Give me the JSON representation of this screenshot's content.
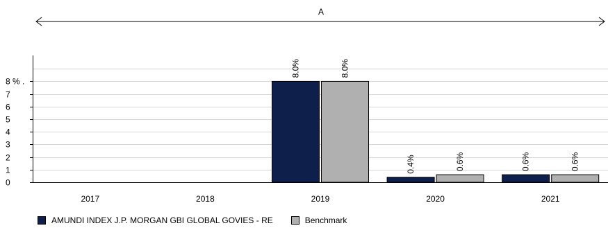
{
  "chart_data": {
    "type": "bar",
    "range_label": "A",
    "categories": [
      "2017",
      "2018",
      "2019",
      "2020",
      "2021"
    ],
    "series": [
      {
        "name": "AMUNDI INDEX J.P. MORGAN GBI GLOBAL GOVIES  - RE",
        "values": [
          null,
          null,
          8.0,
          0.4,
          0.6
        ],
        "labels": [
          "",
          "",
          "8.0%",
          "0.4%",
          "0.6%"
        ],
        "color": "#0d1f4a"
      },
      {
        "name": "Benchmark",
        "values": [
          null,
          null,
          8.0,
          0.6,
          0.6
        ],
        "labels": [
          "",
          "",
          "8.0%",
          "0.6%",
          "0.6%"
        ],
        "color": "#b0b0b0"
      }
    ],
    "ylim": [
      0,
      10
    ],
    "yticks": [
      "0",
      "1",
      "2",
      "3",
      "4",
      "5",
      "6",
      "7",
      "8 % ."
    ],
    "grid": true,
    "legend_position": "bottom-left"
  }
}
